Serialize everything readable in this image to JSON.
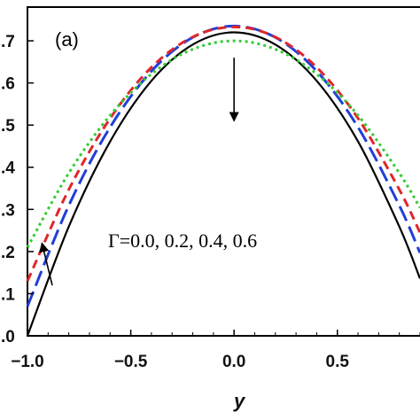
{
  "chart_data": {
    "type": "line",
    "panel_label": "(a)",
    "xlabel": "y",
    "ylabel": "",
    "xlim": [
      -1.0,
      0.9
    ],
    "ylim": [
      -0.0,
      0.78
    ],
    "x_ticks": [
      -1.0,
      -0.5,
      0.0,
      0.5
    ],
    "x_tick_labels": [
      "−1.0",
      "−0.5",
      "0.0",
      "0.5"
    ],
    "y_ticks": [
      0.0,
      0.1,
      0.2,
      0.3,
      0.4,
      0.5,
      0.6,
      0.7
    ],
    "y_tick_labels": [
      ".0",
      ".1",
      ".2",
      ".3",
      ".4",
      ".5",
      ".6",
      ".7"
    ],
    "annotation": "Γ=0.0, 0.2, 0.4, 0.6",
    "series": [
      {
        "color": "#000000",
        "dash": "solid",
        "x": [
          -1.0,
          -0.8,
          -0.6,
          -0.4,
          -0.2,
          0.0,
          0.2,
          0.4,
          0.6,
          0.8,
          0.9
        ],
        "y": [
          0.0,
          0.259,
          0.461,
          0.605,
          0.691,
          0.72,
          0.691,
          0.605,
          0.461,
          0.259,
          0.136
        ]
      },
      {
        "color": "#1f3fd6",
        "dash": "long",
        "x": [
          -1.0,
          -0.8,
          -0.6,
          -0.4,
          -0.2,
          0.0,
          0.2,
          0.4,
          0.6,
          0.8,
          0.9
        ],
        "y": [
          0.07,
          0.309,
          0.495,
          0.628,
          0.708,
          0.735,
          0.708,
          0.628,
          0.495,
          0.309,
          0.197
        ]
      },
      {
        "color": "#e0262b",
        "dash": "medium",
        "x": [
          -1.0,
          -0.8,
          -0.6,
          -0.4,
          -0.2,
          0.0,
          0.2,
          0.4,
          0.6,
          0.8,
          0.9
        ],
        "y": [
          0.13,
          0.347,
          0.516,
          0.637,
          0.709,
          0.733,
          0.709,
          0.637,
          0.516,
          0.347,
          0.245
        ]
      },
      {
        "color": "#33cc33",
        "dash": "dotted",
        "x": [
          -1.0,
          -0.8,
          -0.6,
          -0.4,
          -0.2,
          0.0,
          0.2,
          0.4,
          0.6,
          0.8,
          0.9
        ],
        "y": [
          0.21,
          0.386,
          0.523,
          0.621,
          0.68,
          0.7,
          0.68,
          0.621,
          0.523,
          0.386,
          0.304
        ]
      }
    ],
    "arrows": [
      {
        "from": [
          0.0,
          0.66
        ],
        "to": [
          0.0,
          0.51
        ]
      },
      {
        "from": [
          -0.88,
          0.12
        ],
        "to": [
          -0.93,
          0.22
        ]
      }
    ],
    "grid": false
  }
}
